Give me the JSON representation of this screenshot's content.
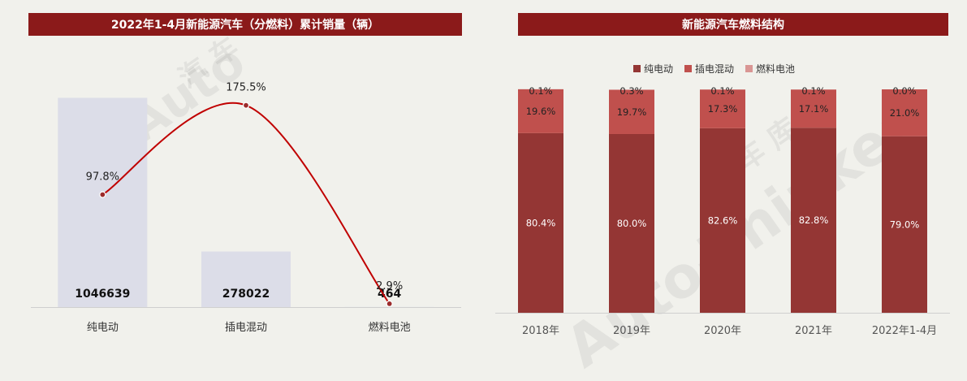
{
  "colors": {
    "title_bg": "#8b1a1a",
    "bar_left": "#dcdde8",
    "line": "#c00000",
    "pure_electric": "#943634",
    "plug_in_hybrid": "#c0504d",
    "fuel_cell": "#d99694"
  },
  "left": {
    "title": "2022年1-4月新能源汽车（分燃料）累计销量（辆）"
  },
  "right": {
    "title": "新能源汽车燃料结构"
  },
  "chart_data": [
    {
      "type": "bar",
      "title": "2022年1-4月新能源汽车（分燃料）累计销量（辆）",
      "categories": [
        "纯电动",
        "插电混动",
        "燃料电池"
      ],
      "values": [
        1046639,
        278022,
        464
      ],
      "value_labels": [
        "1046639",
        "278022",
        "464"
      ],
      "ylim": [
        0,
        1150000
      ],
      "line_series": {
        "values": [
          97.8,
          175.5,
          2.9
        ],
        "labels": [
          "97.8%",
          "175.5%",
          "2.9%"
        ],
        "ylim": [
          0,
          200
        ]
      },
      "grid": false
    },
    {
      "type": "bar",
      "stacked": true,
      "percent": true,
      "title": "新能源汽车燃料结构",
      "categories": [
        "2018年",
        "2019年",
        "2020年",
        "2021年",
        "2022年1-4月"
      ],
      "series": [
        {
          "name": "纯电动",
          "values": [
            80.4,
            80.0,
            82.6,
            82.8,
            79.0
          ],
          "labels": [
            "80.4%",
            "80.0%",
            "82.6%",
            "82.8%",
            "79.0%"
          ]
        },
        {
          "name": "插电混动",
          "values": [
            19.6,
            19.7,
            17.3,
            17.1,
            21.0
          ],
          "labels": [
            "19.6%",
            "19.7%",
            "17.3%",
            "17.1%",
            "21.0%"
          ]
        },
        {
          "name": "燃料电池",
          "values": [
            0.1,
            0.3,
            0.1,
            0.1,
            0.0
          ],
          "labels": [
            "0.1%",
            "0.3%",
            "0.1%",
            "0.1%",
            "0.0%"
          ]
        }
      ],
      "ylim": [
        0,
        100
      ],
      "legend_position": "top",
      "grid": false
    }
  ]
}
